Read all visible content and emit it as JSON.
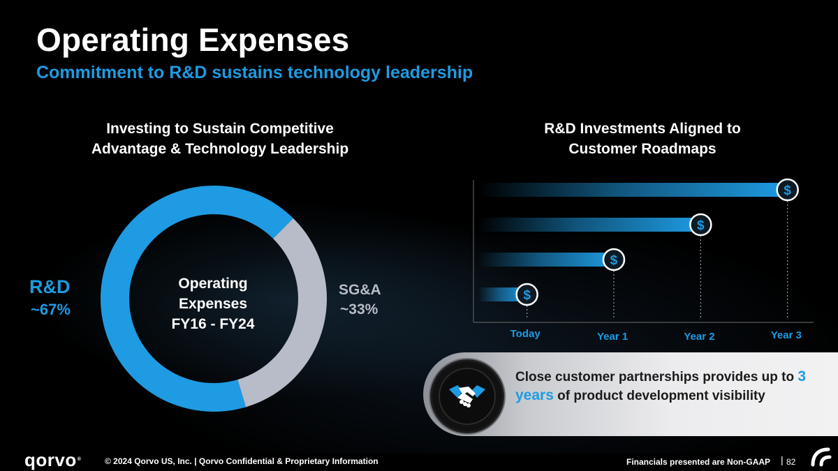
{
  "slide": {
    "title": "Operating Expenses",
    "subtitle": "Commitment to R&D sustains technology leadership"
  },
  "left_panel": {
    "heading_line1": "Investing to Sustain Competitive",
    "heading_line2": "Advantage & Technology Leadership",
    "center_line1": "Operating",
    "center_line2": "Expenses",
    "center_line3": "FY16 - FY24"
  },
  "right_panel": {
    "heading_line1": "R&D Investments Aligned to",
    "heading_line2": "Customer Roadmaps",
    "dollar_symbol": "$"
  },
  "callout": {
    "text_before": "Close customer partnerships provides up to ",
    "highlight": "3 years",
    "text_after": " of product development visibility",
    "icon": "handshake-icon"
  },
  "footer": {
    "logo_text": "qorvo",
    "logo_mark": "®",
    "copyright": "© 2024 Qorvo US, Inc. | Qorvo Confidential & Proprietary Information",
    "note": "Financials presented are Non-GAAP",
    "separator": "|",
    "page_number": "82"
  },
  "colors": {
    "accent_blue": "#1e9be2",
    "sga_gray": "#b8bcc8",
    "background": "#000000"
  },
  "chart_data": [
    {
      "type": "pie",
      "variant": "donut",
      "title": "Operating Expenses FY16 - FY24",
      "slices": [
        {
          "name": "R&D",
          "label": "~67%",
          "value": 67,
          "color": "#1e9be2"
        },
        {
          "name": "SG&A",
          "label": "~33%",
          "value": 33,
          "color": "#b8bcc8"
        }
      ]
    },
    {
      "type": "bar",
      "orientation": "horizontal",
      "title": "R&D Investments Aligned to Customer Roadmaps",
      "categories": [
        "Today",
        "Year 1",
        "Year 2",
        "Year 3"
      ],
      "values": [
        0,
        1,
        2,
        3
      ],
      "xlim": [
        -0.6,
        3.3
      ],
      "marker": "$"
    }
  ]
}
